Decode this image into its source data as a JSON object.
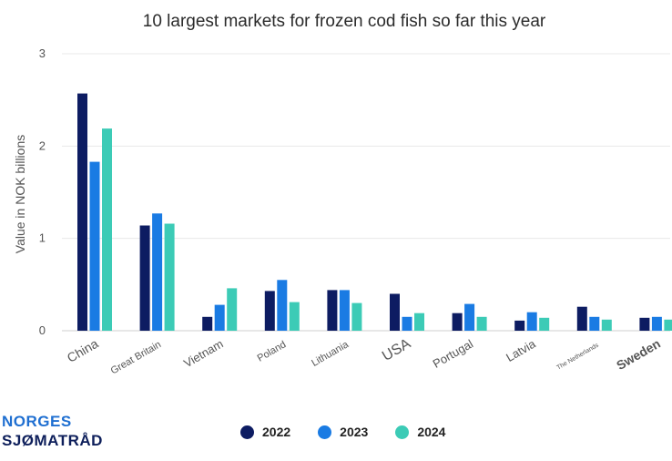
{
  "colors": {
    "2022": "#0d1c62",
    "2023": "#1a7be3",
    "2024": "#3ccbb6"
  },
  "logo": {
    "line1": "NORGES",
    "line2": "SJØMATRÅD"
  },
  "chart_data": {
    "type": "bar",
    "title": "10 largest markets for frozen cod fish so far this year",
    "xlabel": "",
    "ylabel": "Value in NOK billions",
    "ylim": [
      0,
      3
    ],
    "yticks": [
      "0",
      "1",
      "2",
      "3"
    ],
    "grid": true,
    "legend_position": "bottom",
    "categories": [
      "China",
      "Great Britain",
      "Vietnam",
      "Poland",
      "Lithuania",
      "USA",
      "Portugal",
      "Latvia",
      "The Netherlands",
      "Sweden"
    ],
    "series": [
      {
        "name": "2022",
        "values": [
          2.57,
          1.14,
          0.15,
          0.43,
          0.44,
          0.4,
          0.19,
          0.11,
          0.26,
          0.14
        ]
      },
      {
        "name": "2023",
        "values": [
          1.83,
          1.27,
          0.28,
          0.55,
          0.44,
          0.15,
          0.29,
          0.2,
          0.15,
          0.15
        ]
      },
      {
        "name": "2024",
        "values": [
          2.19,
          1.16,
          0.46,
          0.31,
          0.3,
          0.19,
          0.15,
          0.14,
          0.12,
          0.12
        ]
      }
    ]
  }
}
